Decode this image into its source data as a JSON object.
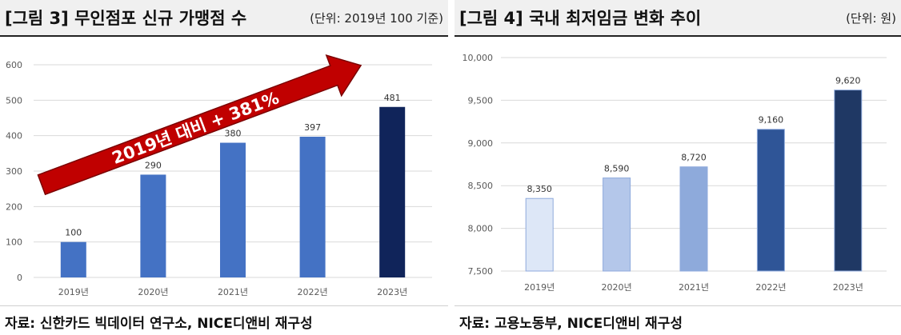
{
  "left": {
    "title": "[그림 3] 무인점포 신규 가맹점 수",
    "unit": "(단위: 2019년 100 기준)",
    "source": "자료: 신한카드 빅데이터 연구소, NICE디앤비 재구성",
    "annotation": "2019년 대비 + 381%",
    "colors": {
      "bar": "#4472c4",
      "bar_last": "#10245a",
      "arrow": "#c00000",
      "grid": "#d9d9d9",
      "text": "#595959"
    },
    "chart_data": {
      "type": "bar",
      "categories": [
        "2019년",
        "2020년",
        "2021년",
        "2022년",
        "2023년"
      ],
      "values": [
        100,
        290,
        380,
        397,
        481
      ],
      "value_labels": [
        "100",
        "290",
        "380",
        "397",
        "481"
      ],
      "ylim": [
        0,
        600
      ],
      "yticks": [
        0,
        100,
        200,
        300,
        400,
        500,
        600
      ],
      "ytick_labels": [
        "0",
        "100",
        "200",
        "300",
        "400",
        "500",
        "600"
      ],
      "grid": true,
      "title": "",
      "xlabel": "",
      "ylabel": ""
    }
  },
  "right": {
    "title": "[그림 4] 국내 최저임금 변화 추이",
    "unit": "(단위: 원)",
    "source": "자료: 고용노동부, NICE디앤비 재구성",
    "colors": {
      "bars": [
        "#dde7f7",
        "#b4c7ea",
        "#8eaadb",
        "#2f5597",
        "#1f3864"
      ],
      "grid": "#d9d9d9",
      "text": "#595959"
    },
    "chart_data": {
      "type": "bar",
      "categories": [
        "2019년",
        "2020년",
        "2021년",
        "2022년",
        "2023년"
      ],
      "values": [
        8350,
        8590,
        8720,
        9160,
        9620
      ],
      "value_labels": [
        "8,350",
        "8,590",
        "8,720",
        "9,160",
        "9,620"
      ],
      "ylim": [
        7500,
        10000
      ],
      "yticks": [
        7500,
        8000,
        8500,
        9000,
        9500,
        10000
      ],
      "ytick_labels": [
        "7,500",
        "8,000",
        "8,500",
        "9,000",
        "9,500",
        "10,000"
      ],
      "grid": true,
      "title": "",
      "xlabel": "",
      "ylabel": ""
    }
  }
}
